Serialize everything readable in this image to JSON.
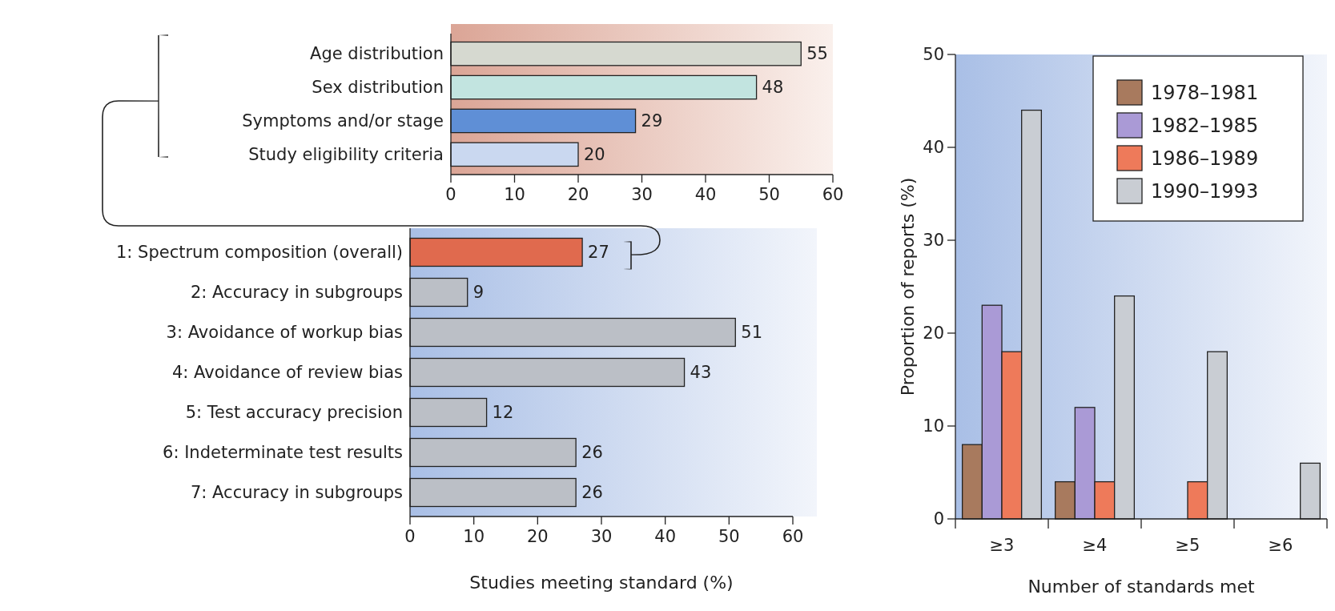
{
  "chart_data": [
    {
      "type": "bar",
      "orientation": "horizontal",
      "categories": [
        "Age distribution",
        "Sex distribution",
        "Symptoms and/or stage",
        "Study eligibility criteria"
      ],
      "values": [
        55,
        48,
        29,
        20
      ],
      "colors": [
        "#d6d9d0",
        "#c2e4e0",
        "#5f8fd6",
        "#cad8f0"
      ],
      "xlim": [
        0,
        60
      ],
      "xticks": [
        0,
        10,
        20,
        30,
        40,
        50,
        60
      ],
      "data_labels": true,
      "grid": false
    },
    {
      "type": "bar",
      "orientation": "horizontal",
      "xlabel": "Studies meeting standard (%)",
      "categories": [
        "1: Spectrum composition (overall)",
        "2: Accuracy in subgroups",
        "3: Avoidance of workup bias",
        "4: Avoidance of review bias",
        "5: Test accuracy precision",
        "6: Indeterminate test results",
        "7: Accuracy in subgroups"
      ],
      "values": [
        27,
        9,
        51,
        43,
        12,
        26,
        26
      ],
      "colors": [
        "#e06a4e",
        "#bbbfc6",
        "#bbbfc6",
        "#bbbfc6",
        "#bbbfc6",
        "#bbbfc6",
        "#bbbfc6"
      ],
      "xlim": [
        0,
        60
      ],
      "xticks": [
        0,
        10,
        20,
        30,
        40,
        50,
        60
      ],
      "data_labels": true,
      "grid": false
    },
    {
      "type": "bar",
      "xlabel": "Number of standards met",
      "ylabel": "Proportion of reports (%)",
      "categories": [
        "≥3",
        "≥4",
        "≥5",
        "≥6"
      ],
      "series": [
        {
          "name": "1978–1981",
          "color": "#a87a5e",
          "values": [
            8,
            4,
            null,
            null
          ]
        },
        {
          "name": "1982–1985",
          "color": "#aa9ad6",
          "values": [
            23,
            12,
            null,
            null
          ]
        },
        {
          "name": "1986–1989",
          "color": "#ee7a5a",
          "values": [
            18,
            4,
            4,
            null
          ]
        },
        {
          "name": "1990–1993",
          "color": "#c9cdd3",
          "values": [
            44,
            24,
            18,
            6
          ]
        }
      ],
      "ylim": [
        0,
        50
      ],
      "yticks": [
        0,
        10,
        20,
        30,
        40,
        50
      ],
      "legend": "top right",
      "grid": false
    }
  ]
}
